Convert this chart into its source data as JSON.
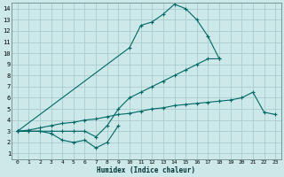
{
  "xlabel": "Humidex (Indice chaleur)",
  "bg_color": "#cce8e8",
  "grid_color": "#aacccc",
  "line_color": "#006868",
  "xlim": [
    -0.5,
    23.5
  ],
  "ylim": [
    0.5,
    14.5
  ],
  "xticks": [
    0,
    1,
    2,
    3,
    4,
    5,
    6,
    7,
    8,
    9,
    10,
    11,
    12,
    13,
    14,
    15,
    16,
    17,
    18,
    19,
    20,
    21,
    22,
    23
  ],
  "yticks": [
    1,
    2,
    3,
    4,
    5,
    6,
    7,
    8,
    9,
    10,
    11,
    12,
    13,
    14
  ],
  "series": [
    {
      "x": [
        0,
        1,
        2,
        3,
        4,
        5,
        6,
        7,
        8,
        9
      ],
      "y": [
        3,
        3,
        3,
        2.8,
        2.2,
        2.0,
        2.2,
        1.5,
        2.0,
        3.5
      ]
    },
    {
      "x": [
        0,
        1,
        2,
        3,
        4,
        5,
        6,
        7,
        8,
        9,
        10,
        11,
        12,
        13,
        14,
        15,
        16,
        17,
        18
      ],
      "y": [
        3,
        3,
        3,
        3,
        3,
        3,
        3,
        2.5,
        3.5,
        5.0,
        6.0,
        6.5,
        7.0,
        7.5,
        8.0,
        8.5,
        9.0,
        9.5,
        9.5
      ]
    },
    {
      "x": [
        0,
        1,
        2,
        3,
        4,
        5,
        6,
        7,
        8,
        9,
        10,
        11,
        12,
        13,
        14,
        15,
        16,
        17,
        18,
        19,
        20,
        21,
        22,
        23
      ],
      "y": [
        3,
        3.1,
        3.3,
        3.5,
        3.7,
        3.8,
        4.0,
        4.1,
        4.3,
        4.5,
        4.6,
        4.8,
        5.0,
        5.1,
        5.3,
        5.4,
        5.5,
        5.6,
        5.7,
        5.8,
        6.0,
        6.5,
        4.7,
        4.5
      ]
    },
    {
      "x": [
        0,
        10,
        11,
        12,
        13,
        14,
        15,
        16,
        17,
        18
      ],
      "y": [
        3,
        10.5,
        12.5,
        12.8,
        13.5,
        14.4,
        14.0,
        13.0,
        11.5,
        9.5
      ]
    }
  ]
}
